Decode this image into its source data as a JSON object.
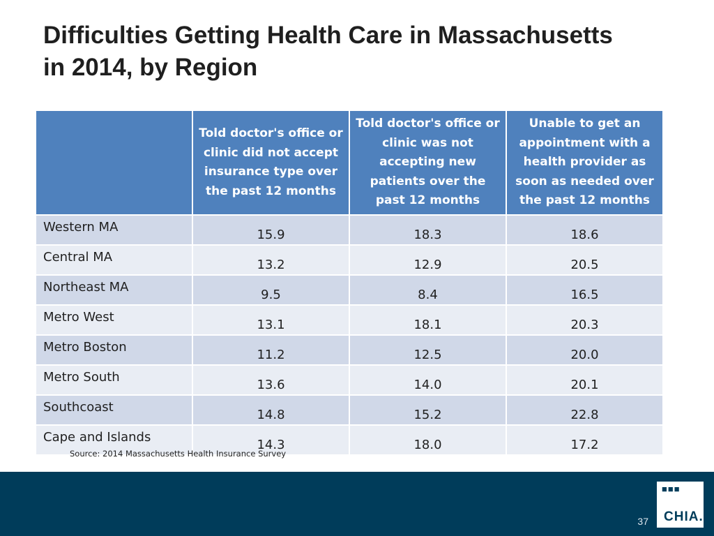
{
  "title": {
    "line1": "Difficulties Getting Health Care in Massachusetts",
    "line2": "in 2014, by Region"
  },
  "table": {
    "header": {
      "col0": "",
      "col1": "Told doctor's office or clinic did not accept insurance type over the past 12 months",
      "col2": "Told doctor's office or clinic was not accepting new patients over the past 12 months",
      "col3": "Unable to get an appointment with a health provider as soon as needed over the past 12 months"
    },
    "rows": [
      {
        "region": "Western MA",
        "v1": "15.9",
        "v2": "18.3",
        "v3": "18.6"
      },
      {
        "region": "Central MA",
        "v1": "13.2",
        "v2": "12.9",
        "v3": "20.5"
      },
      {
        "region": "Northeast MA",
        "v1": "9.5",
        "v2": "8.4",
        "v3": "16.5"
      },
      {
        "region": "Metro West",
        "v1": "13.1",
        "v2": "18.1",
        "v3": "20.3"
      },
      {
        "region": "Metro Boston",
        "v1": "11.2",
        "v2": "12.5",
        "v3": "20.0"
      },
      {
        "region": "Metro South",
        "v1": "13.6",
        "v2": "14.0",
        "v3": "20.1"
      },
      {
        "region": "Southcoast",
        "v1": "14.8",
        "v2": "15.2",
        "v3": "22.8"
      },
      {
        "region": "Cape and Islands",
        "v1": "14.3",
        "v2": "18.0",
        "v3": "17.2"
      }
    ]
  },
  "source": "Source:  2014 Massachusetts Health Insurance Survey",
  "footer": {
    "page_number": "37",
    "logo_text": "CHIA."
  },
  "colors": {
    "header_bg": "#4f81bd",
    "row_odd": "#d0d8e8",
    "row_even": "#e9edf4",
    "footer_bg": "#003c5a"
  }
}
